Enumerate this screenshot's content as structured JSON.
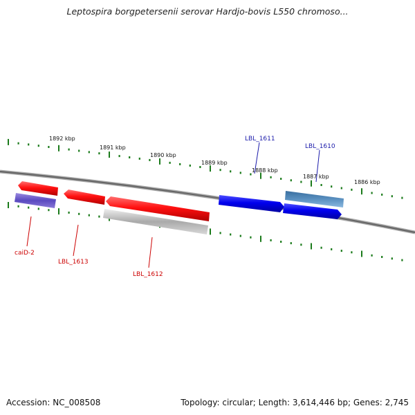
{
  "title": "Leptospira borgpetersenii serovar Hardjo-bovis L550 chromoso...",
  "footer": {
    "accession": "Accession: NC_008508",
    "summary": "Topology: circular; Length: 3,614,446 bp; Genes: 2,745"
  },
  "scale": {
    "tick_labels": [
      "1892 kbp",
      "1891 kbp",
      "1890 kbp",
      "1889 kbp",
      "1888 kbp",
      "1887 kbp",
      "1886 kbp"
    ]
  },
  "genes": {
    "forward_labels": [
      "LBL_1611",
      "LBL_1610"
    ],
    "reverse_labels": [
      "caiD-2",
      "LBL_1613",
      "LBL_1612"
    ]
  },
  "colors": {
    "reverse_gene": "#ff1a1a",
    "forward_gene": "#1a1aee",
    "tick": "#1a7a1a",
    "backbone": "#777777",
    "forward_label": "#1a1aaa",
    "reverse_label": "#cc0000"
  }
}
